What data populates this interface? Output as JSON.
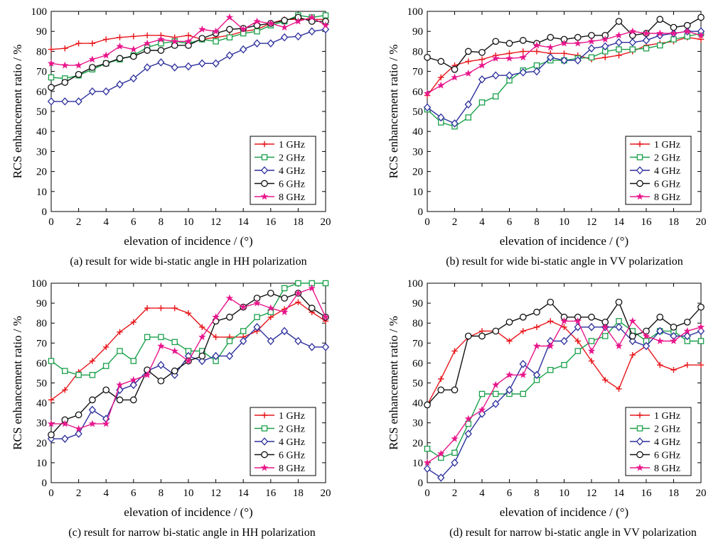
{
  "chart_data": [
    {
      "type": "line",
      "caption": "(a) result for wide bi-static angle in HH polarization",
      "xlabel": "elevation of incidence / (°)",
      "ylabel": "RCS enhancement ratio / %",
      "xlim": [
        0,
        20
      ],
      "ylim": [
        0,
        100
      ],
      "xticks": [
        0,
        2,
        4,
        6,
        8,
        10,
        12,
        14,
        16,
        18,
        20
      ],
      "yticks": [
        0,
        10,
        20,
        30,
        40,
        50,
        60,
        70,
        80,
        90,
        100
      ],
      "grid": false,
      "legend_position": "bottom-right",
      "x": [
        0,
        1,
        2,
        3,
        4,
        5,
        6,
        7,
        8,
        9,
        10,
        11,
        12,
        13,
        14,
        15,
        16,
        17,
        18,
        19,
        20
      ],
      "series": [
        {
          "name": "1 GHz",
          "color": "#e8161b",
          "marker": "plus",
          "values": [
            81,
            81.5,
            84,
            84,
            86,
            87,
            87.5,
            88,
            88,
            87,
            88,
            86,
            87,
            88,
            90,
            91,
            94,
            96,
            96,
            96,
            96
          ]
        },
        {
          "name": "2 GHz",
          "color": "#1aa04a",
          "marker": "square",
          "values": [
            67,
            66.5,
            68,
            71,
            74,
            76,
            78,
            82,
            84,
            85,
            84,
            86,
            85,
            87,
            89,
            90,
            93,
            95,
            98,
            97,
            98
          ]
        },
        {
          "name": "4 GHz",
          "color": "#2c2f9c",
          "marker": "diamond",
          "values": [
            55,
            55,
            55,
            60,
            60,
            63.5,
            66.5,
            72,
            74.5,
            72,
            72.5,
            74,
            74,
            78,
            81,
            84,
            84,
            87,
            87.5,
            90,
            91
          ]
        },
        {
          "name": "6 GHz",
          "color": "#111111",
          "marker": "circle",
          "values": [
            62,
            64.5,
            68.5,
            72,
            74,
            76.5,
            77.5,
            80.5,
            80.5,
            83,
            83,
            86.5,
            89,
            91,
            91.5,
            93,
            94,
            95.5,
            97,
            95,
            95
          ]
        },
        {
          "name": "8 GHz",
          "color": "#e8168b",
          "marker": "star",
          "values": [
            74,
            73,
            73,
            76,
            78,
            82.5,
            81,
            84,
            86,
            85,
            85,
            91,
            90,
            97,
            91,
            95,
            94,
            92,
            95,
            97,
            93
          ]
        }
      ]
    },
    {
      "type": "line",
      "caption": "(b) result for wide bi-static angle in VV polarization",
      "xlabel": "elevation of incidence / (°)",
      "ylabel": "RCS enhancement ratio / %",
      "xlim": [
        0,
        20
      ],
      "ylim": [
        0,
        100
      ],
      "xticks": [
        0,
        2,
        4,
        6,
        8,
        10,
        12,
        14,
        16,
        18,
        20
      ],
      "yticks": [
        0,
        10,
        20,
        30,
        40,
        50,
        60,
        70,
        80,
        90,
        100
      ],
      "grid": false,
      "legend_position": "bottom-right",
      "x": [
        0,
        1,
        2,
        3,
        4,
        5,
        6,
        7,
        8,
        9,
        10,
        11,
        12,
        13,
        14,
        15,
        16,
        17,
        18,
        19,
        20
      ],
      "series": [
        {
          "name": "1 GHz",
          "color": "#e8161b",
          "marker": "plus",
          "values": [
            58,
            67,
            73,
            75,
            76,
            78,
            79,
            80,
            80,
            79,
            79,
            78,
            76,
            77,
            78,
            80,
            83,
            84,
            85,
            87,
            86
          ]
        },
        {
          "name": "2 GHz",
          "color": "#1aa04a",
          "marker": "square",
          "values": [
            51,
            44.5,
            42.5,
            47,
            54.5,
            57.5,
            65.5,
            70.5,
            73,
            75.5,
            75.5,
            76.5,
            77,
            80,
            81,
            81,
            81.5,
            83,
            86,
            87.5,
            89
          ]
        },
        {
          "name": "4 GHz",
          "color": "#2c2f9c",
          "marker": "diamond",
          "values": [
            52,
            47,
            44,
            53.5,
            66,
            68,
            68,
            69.5,
            70,
            77,
            75.5,
            75.5,
            81.5,
            82.5,
            84.5,
            84.5,
            85.5,
            88,
            89,
            90,
            90
          ]
        },
        {
          "name": "6 GHz",
          "color": "#111111",
          "marker": "circle",
          "values": [
            77,
            75,
            71,
            80,
            79.5,
            85,
            84,
            85.5,
            84,
            87,
            86,
            87,
            88,
            88,
            95,
            88,
            89,
            96,
            92,
            93,
            97
          ]
        },
        {
          "name": "8 GHz",
          "color": "#e8168b",
          "marker": "star",
          "values": [
            59,
            63,
            67,
            69,
            73,
            76.5,
            76.5,
            77,
            83,
            82,
            84,
            84,
            85,
            86,
            88,
            90,
            89,
            89,
            89,
            90,
            88
          ]
        }
      ]
    },
    {
      "type": "line",
      "caption": "(c) result for narrow bi-static angle in HH polarization",
      "xlabel": "elevation of incidence / (°)",
      "ylabel": "RCS enhancement ratio / %",
      "xlim": [
        0,
        20
      ],
      "ylim": [
        0,
        100
      ],
      "xticks": [
        0,
        2,
        4,
        6,
        8,
        10,
        12,
        14,
        16,
        18,
        20
      ],
      "yticks": [
        0,
        10,
        20,
        30,
        40,
        50,
        60,
        70,
        80,
        90,
        100
      ],
      "grid": false,
      "legend_position": "bottom-right",
      "x": [
        0,
        1,
        2,
        3,
        4,
        5,
        6,
        7,
        8,
        9,
        10,
        11,
        12,
        13,
        14,
        15,
        16,
        17,
        18,
        19,
        20
      ],
      "series": [
        {
          "name": "1 GHz",
          "color": "#e8161b",
          "marker": "plus",
          "values": [
            41.5,
            46.5,
            55.5,
            61,
            68,
            75.5,
            80.5,
            87.5,
            87.5,
            87.5,
            85,
            78,
            73,
            73,
            73,
            76,
            83,
            87,
            90.5,
            85.5,
            81
          ]
        },
        {
          "name": "2 GHz",
          "color": "#1aa04a",
          "marker": "square",
          "values": [
            61,
            56,
            54,
            54,
            58.5,
            66,
            61,
            73,
            73,
            70.5,
            66,
            66,
            61,
            71,
            76,
            83,
            85.5,
            97.5,
            100,
            100,
            100
          ]
        },
        {
          "name": "4 GHz",
          "color": "#2c2f9c",
          "marker": "diamond",
          "values": [
            22,
            22,
            24.5,
            36.5,
            32,
            46.5,
            49,
            56,
            59,
            54,
            63.5,
            61,
            63.5,
            63.5,
            71,
            78,
            71,
            76,
            71,
            68,
            68
          ]
        },
        {
          "name": "6 GHz",
          "color": "#111111",
          "marker": "circle",
          "values": [
            24,
            31.5,
            34,
            41.5,
            46.5,
            41.5,
            41.5,
            56.5,
            51,
            56,
            61,
            63.5,
            81,
            83,
            88,
            92.5,
            95,
            92.5,
            95,
            87.5,
            83
          ]
        },
        {
          "name": "8 GHz",
          "color": "#e8168b",
          "marker": "star",
          "values": [
            29.5,
            29.5,
            27,
            29.5,
            29.5,
            49,
            51.5,
            54,
            68.5,
            66,
            61,
            73,
            83,
            92.5,
            88,
            90,
            87.5,
            85.5,
            95,
            97.5,
            83
          ]
        }
      ]
    },
    {
      "type": "line",
      "caption": "(d) result for narrow bi-static angle in VV polarization",
      "xlabel": "elevation of incidence / (°)",
      "ylabel": "RCS enhancement ratio / %",
      "xlim": [
        0,
        20
      ],
      "ylim": [
        0,
        100
      ],
      "xticks": [
        0,
        2,
        4,
        6,
        8,
        10,
        12,
        14,
        16,
        18,
        20
      ],
      "yticks": [
        0,
        10,
        20,
        30,
        40,
        50,
        60,
        70,
        80,
        90,
        100
      ],
      "grid": false,
      "legend_position": "bottom-right",
      "x": [
        0,
        1,
        2,
        3,
        4,
        5,
        6,
        7,
        8,
        9,
        10,
        11,
        12,
        13,
        14,
        15,
        16,
        17,
        18,
        19,
        20
      ],
      "series": [
        {
          "name": "1 GHz",
          "color": "#e8161b",
          "marker": "plus",
          "values": [
            39,
            52,
            66,
            73,
            76,
            76,
            71,
            76,
            78,
            81,
            78,
            71,
            61,
            51.5,
            47,
            64,
            68.5,
            59,
            56.5,
            59,
            59
          ]
        },
        {
          "name": "2 GHz",
          "color": "#1aa04a",
          "marker": "square",
          "values": [
            17,
            12.5,
            15,
            29.5,
            44.5,
            44.5,
            44.5,
            44.5,
            51.5,
            56.5,
            59,
            66,
            71,
            73.5,
            81,
            76,
            71,
            76,
            76,
            71,
            71
          ]
        },
        {
          "name": "4 GHz",
          "color": "#2c2f9c",
          "marker": "diamond",
          "values": [
            7,
            2.5,
            10,
            24.5,
            34.5,
            39.5,
            46.5,
            59.5,
            54,
            71,
            71,
            78,
            78,
            78,
            78,
            71,
            68.5,
            76,
            73.5,
            73.5,
            76
          ]
        },
        {
          "name": "6 GHz",
          "color": "#111111",
          "marker": "circle",
          "values": [
            39,
            46.5,
            46.5,
            73.5,
            73.5,
            76,
            80.5,
            83,
            85.5,
            90.5,
            83,
            83,
            83,
            80.5,
            90.5,
            73.5,
            76,
            83,
            78,
            80.5,
            88
          ]
        },
        {
          "name": "8 GHz",
          "color": "#e8168b",
          "marker": "star",
          "values": [
            10,
            14.5,
            22,
            32,
            36.5,
            49,
            54,
            54,
            68.5,
            68.5,
            81,
            81,
            66,
            78,
            68.5,
            81,
            73.5,
            71,
            71,
            76,
            78
          ]
        }
      ]
    }
  ]
}
